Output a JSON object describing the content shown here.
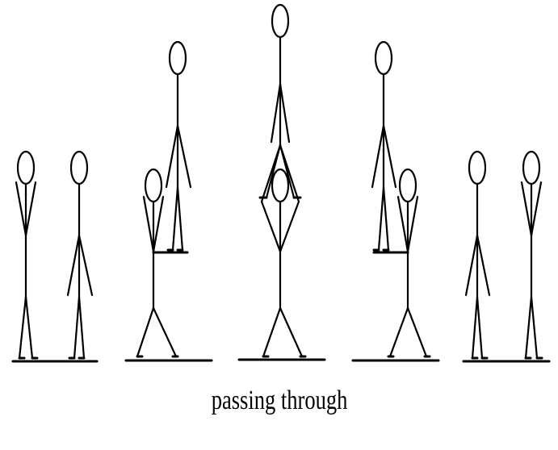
{
  "diagram": {
    "caption": "passing through"
  },
  "colors": {
    "stroke": "#000000",
    "background": "#ffffff"
  }
}
